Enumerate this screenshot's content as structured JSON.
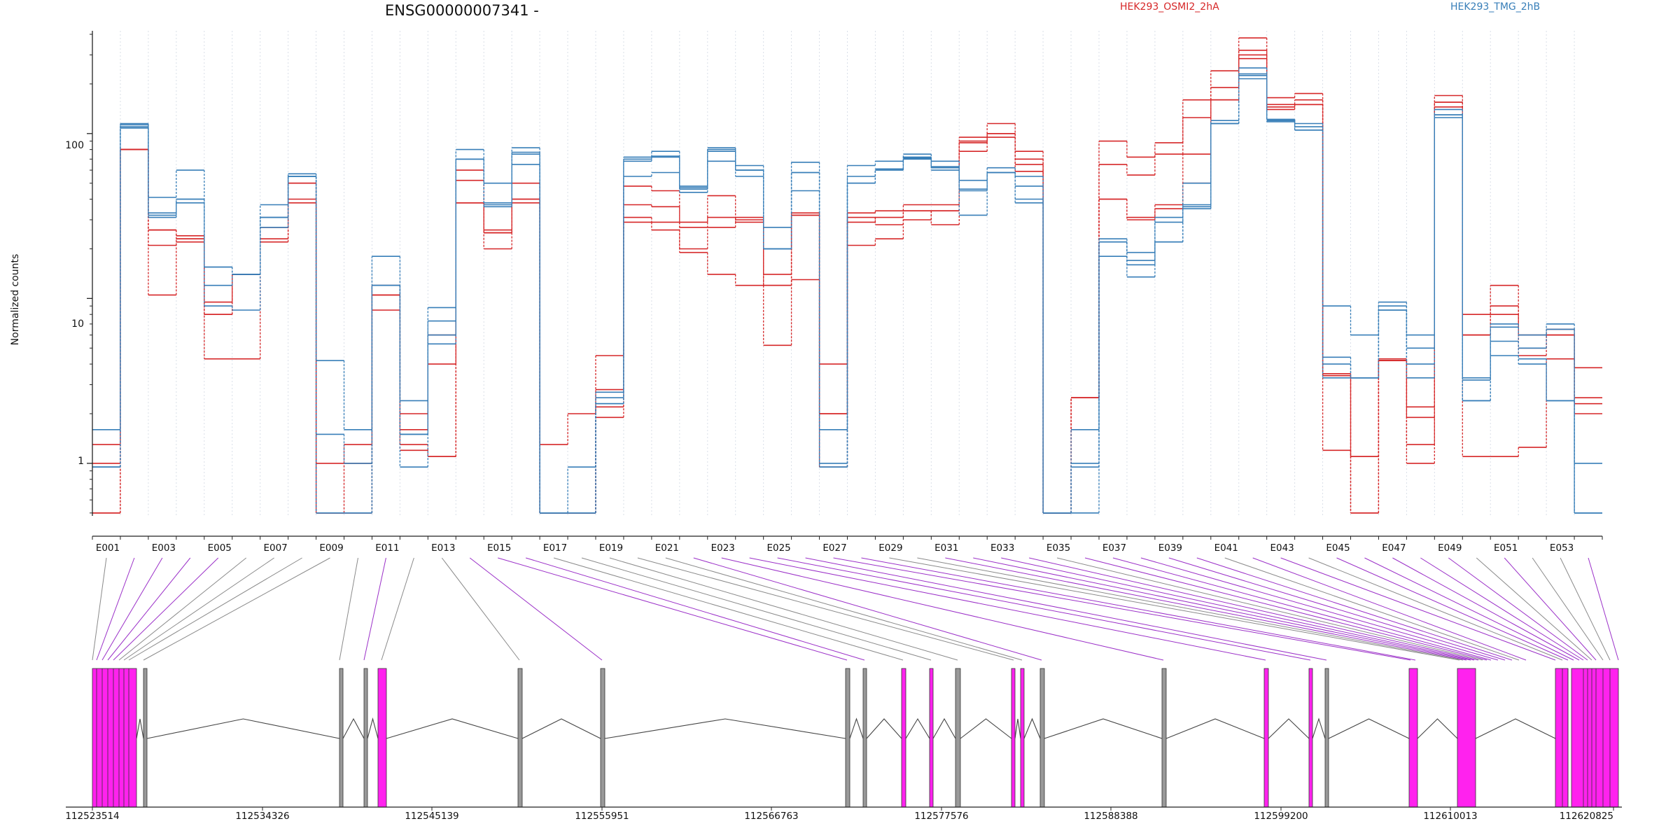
{
  "chart_data": {
    "type": "line",
    "title": "ENSG00000007341 -",
    "ylabel": "Normalized counts",
    "y_scale": "log",
    "ylim": [
      0.48,
      420
    ],
    "y_ticks": [
      "1",
      "10",
      "100"
    ],
    "exon_labels": [
      "E001",
      "E003",
      "E005",
      "E007",
      "E009",
      "E011",
      "E013",
      "E015",
      "E017",
      "E019",
      "E021",
      "E023",
      "E025",
      "E027",
      "E029",
      "E031",
      "E033",
      "E035",
      "E037",
      "E039",
      "E041",
      "E043",
      "E045",
      "E047",
      "E049",
      "E051",
      "E053"
    ],
    "gene_axis_ticks": [
      "112523514",
      "112534326",
      "112545139",
      "112555951",
      "112566763",
      "112577576",
      "112588388",
      "112599200",
      "112610013",
      "112620825"
    ],
    "series": [
      {
        "name": "HEK293_OSMI2_2hA",
        "color": "#d62728",
        "values": [
          [
            1.3,
            80,
            26,
            24,
            9.5,
            14,
            23,
            40,
            1.0,
            1.3,
            12,
            2.0,
            6.0,
            60,
            26,
            50,
            1.3,
            2.0,
            4.5,
            48,
            45,
            20,
            42,
            30,
            12,
            32,
            4.0,
            33,
            34,
            37,
            37,
            95,
            115,
            78,
            0.5,
            2.5,
            90,
            72,
            88,
            160,
            240,
            380,
            165,
            175,
            3.5,
            1.1,
            4.2,
            2.2,
            170,
            8.0,
            12,
            5.0,
            6.5,
            3.8
          ],
          [
            0.5,
            80,
            21,
            23,
            8.0,
            14,
            27,
            38,
            0.5,
            1.0,
            10.5,
            1.6,
            4.0,
            52,
            25,
            40,
            0.5,
            0.5,
            2.8,
            37,
            36,
            29,
            31,
            29,
            14,
            33,
            2.0,
            29,
            31,
            34,
            34,
            88,
            100,
            65,
            0.5,
            2.5,
            65,
            56,
            75,
            125,
            190,
            320,
            150,
            160,
            3.4,
            0.5,
            4.2,
            1.3,
            155,
            6.0,
            9.0,
            4.5,
            6.0,
            2.5
          ],
          [
            1.0,
            80,
            10.5,
            22,
            4.3,
            4.3,
            22,
            50,
            0.5,
            0.5,
            8.5,
            1.2,
            1.1,
            38,
            20,
            40,
            0.5,
            0.5,
            1.9,
            29,
            26,
            19,
            14,
            12,
            5.2,
            13,
            0.95,
            21,
            23,
            34,
            28,
            78,
            95,
            59,
            0.5,
            2.5,
            40,
            31,
            37,
            75,
            160,
            300,
            145,
            150,
            1.2,
            1.1,
            4.2,
            1.0,
            145,
            1.1,
            1.1,
            1.25,
            4.3,
            2.3
          ],
          [
            0.5,
            80,
            26,
            23,
            8.0,
            14,
            27,
            50,
            0.5,
            0.5,
            10.5,
            1.3,
            1.1,
            38,
            25,
            38,
            0.5,
            0.5,
            2.2,
            31,
            29,
            27,
            27,
            31,
            12,
            32,
            2.0,
            31,
            28,
            30,
            34,
            90,
            100,
            70,
            0.5,
            2.5,
            40,
            30,
            35,
            50,
            160,
            285,
            140,
            150,
            3.4,
            0.5,
            4.3,
            1.9,
            155,
            6.0,
            8.0,
            6.0,
            6.0,
            2.0
          ]
        ]
      },
      {
        "name": "HEK293_TMG_2hB",
        "color": "#377eb8",
        "values": [
          [
            1.6,
            115,
            41,
            60,
            15.5,
            14,
            37,
            57,
            4.2,
            1.6,
            18,
            2.4,
            8.8,
            80,
            50,
            82,
            0.5,
            0.95,
            2.7,
            72,
            78,
            48,
            82,
            64,
            27,
            67,
            1.6,
            64,
            68,
            75,
            68,
            52,
            62,
            55,
            0.5,
            1.6,
            23,
            19,
            29,
            50,
            120,
            250,
            122,
            115,
            9.0,
            6.0,
            9.5,
            6.0,
            140,
            3.3,
            7.0,
            6.0,
            7.0,
            1.0
          ],
          [
            0.95,
            113,
            33,
            40,
            15.5,
            14,
            31,
            55,
            1.5,
            1.0,
            12,
            1.5,
            7.3,
            70,
            38,
            77,
            0.5,
            0.5,
            2.5,
            70,
            72,
            47,
            78,
            60,
            20,
            58,
            1.0,
            55,
            61,
            72,
            62,
            46,
            58,
            48,
            0.5,
            1.0,
            22,
            17,
            31,
            37,
            115,
            230,
            122,
            110,
            4.4,
            3.3,
            9.0,
            5.0,
            130,
            3.2,
            6.7,
            5.0,
            6.5,
            0.5
          ],
          [
            0.95,
            110,
            32,
            38,
            12,
            14,
            27,
            55,
            0.5,
            0.5,
            12,
            1.5,
            5.3,
            70,
            37,
            65,
            0.5,
            0.5,
            2.3,
            55,
            58,
            44,
            68,
            55,
            20,
            45,
            0.95,
            50,
            60,
            70,
            60,
            32,
            58,
            38,
            0.5,
            0.95,
            18,
            13.5,
            22,
            35,
            115,
            215,
            118,
            105,
            3.3,
            3.3,
            8.5,
            3.3,
            125,
            2.4,
            4.5,
            4.0,
            2.4,
            0.5
          ],
          [
            0.95,
            108,
            31,
            40,
            9,
            8.5,
            31,
            55,
            0.5,
            0.5,
            12,
            0.95,
            6.0,
            70,
            36,
            75,
            0.5,
            0.5,
            2.3,
            68,
            73,
            46,
            80,
            60,
            20,
            58,
            0.95,
            50,
            61,
            71,
            63,
            45,
            58,
            40,
            0.5,
            0.5,
            22,
            16,
            22,
            36,
            115,
            225,
            120,
            105,
            4.0,
            3.3,
            8.5,
            4.0,
            130,
            2.4,
            5.5,
            4.3,
            2.4,
            0.5
          ]
        ]
      }
    ],
    "exon_types": [
      0,
      1,
      1,
      1,
      1,
      0,
      0,
      0,
      0,
      0,
      1,
      0,
      0,
      1,
      1,
      1,
      0,
      0,
      0,
      0,
      0,
      1,
      1,
      1,
      1,
      1,
      1,
      1,
      0,
      0,
      1,
      1,
      1,
      1,
      0,
      1,
      1,
      1,
      1,
      1,
      0,
      1,
      1,
      0,
      1,
      1,
      1,
      1,
      1,
      0,
      1,
      0,
      0,
      1
    ],
    "colors": {
      "included_exon": "#ff22ee",
      "constitutive_exon": "#999999",
      "connector_included": "#9b30c8",
      "connector_other": "#8a8a8a"
    }
  }
}
